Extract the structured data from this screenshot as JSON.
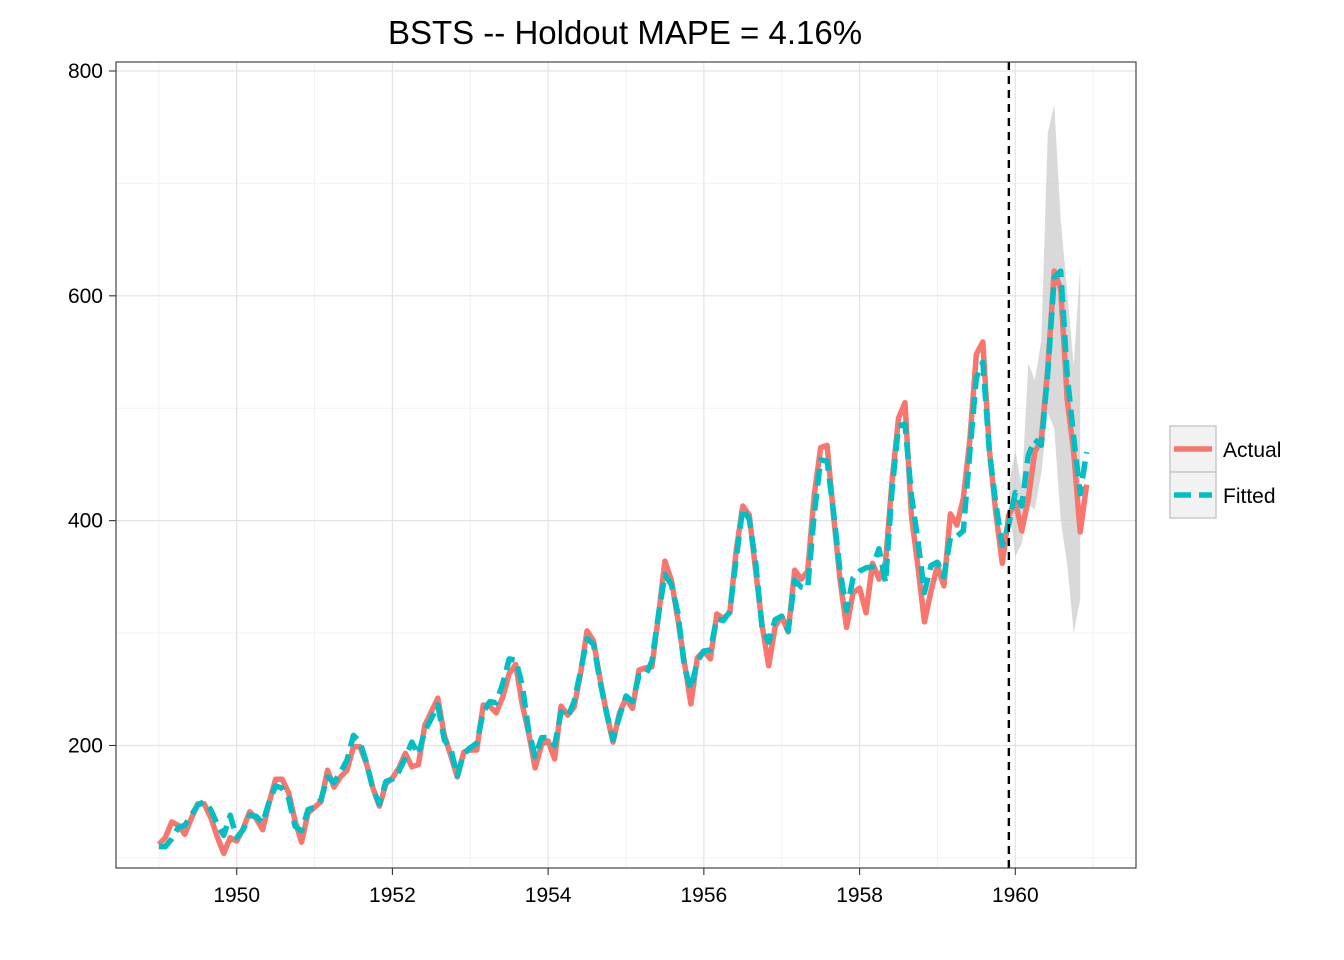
{
  "chart_data": {
    "type": "line",
    "title": "BSTS -- Holdout MAPE = 4.16%",
    "xlabel": "",
    "ylabel": "",
    "xlim": [
      1948.45,
      1961.55
    ],
    "ylim": [
      91,
      808
    ],
    "x_ticks": [
      1950,
      1952,
      1954,
      1956,
      1958,
      1960
    ],
    "x_tick_labels": [
      "1950",
      "1952",
      "1954",
      "1956",
      "1958",
      "1960"
    ],
    "y_ticks": [
      200,
      400,
      600,
      800
    ],
    "y_tick_labels": [
      "200",
      "400",
      "600",
      "800"
    ],
    "grid": true,
    "legend_position": "right",
    "holdout_start": 1959.917,
    "x_start": 1949.0,
    "x_step": 0.08333,
    "series": [
      {
        "name": "Actual",
        "color": "#F8766D",
        "dash": "solid",
        "values": [
          112,
          118,
          132,
          129,
          121,
          135,
          148,
          148,
          136,
          119,
          104,
          118,
          115,
          126,
          141,
          135,
          125,
          149,
          170,
          170,
          158,
          133,
          114,
          140,
          145,
          150,
          178,
          163,
          172,
          178,
          199,
          199,
          184,
          162,
          146,
          166,
          171,
          180,
          193,
          181,
          183,
          218,
          230,
          242,
          209,
          191,
          172,
          194,
          196,
          196,
          236,
          235,
          229,
          243,
          264,
          272,
          237,
          211,
          180,
          201,
          204,
          188,
          235,
          227,
          234,
          264,
          302,
          293,
          259,
          229,
          203,
          229,
          242,
          233,
          267,
          269,
          270,
          315,
          364,
          347,
          312,
          274,
          237,
          278,
          284,
          277,
          317,
          313,
          318,
          374,
          413,
          405,
          355,
          306,
          271,
          306,
          315,
          301,
          356,
          348,
          355,
          422,
          465,
          467,
          404,
          347,
          305,
          336,
          340,
          318,
          362,
          348,
          363,
          435,
          491,
          505,
          404,
          359,
          310,
          337,
          360,
          342,
          406,
          396,
          420,
          472,
          548,
          559,
          463,
          407,
          362,
          405,
          417,
          391,
          419,
          461,
          472,
          535,
          622,
          606,
          508,
          461,
          390,
          432
        ]
      },
      {
        "name": "Fitted",
        "color": "#00BFC4",
        "dash": "dashed",
        "values": [
          110,
          110,
          117,
          127,
          129,
          138,
          147,
          150,
          143,
          130,
          120,
          138,
          118,
          125,
          138,
          137,
          131,
          150,
          164,
          162,
          153,
          128,
          124,
          143,
          145,
          152,
          172,
          167,
          176,
          187,
          209,
          203,
          185,
          161,
          148,
          168,
          170,
          177,
          189,
          203,
          192,
          213,
          224,
          236,
          205,
          197,
          173,
          193,
          198,
          202,
          230,
          239,
          238,
          255,
          277,
          276,
          254,
          213,
          190,
          207,
          207,
          200,
          230,
          225,
          239,
          266,
          295,
          290,
          257,
          229,
          205,
          226,
          244,
          239,
          262,
          262,
          275,
          316,
          352,
          343,
          318,
          270,
          250,
          275,
          284,
          285,
          313,
          311,
          319,
          367,
          411,
          401,
          362,
          303,
          292,
          312,
          315,
          302,
          347,
          341,
          340,
          405,
          454,
          453,
          407,
          355,
          320,
          349,
          355,
          358,
          359,
          375,
          345,
          427,
          484,
          486,
          422,
          382,
          336,
          360,
          363,
          350,
          385,
          386,
          391,
          461,
          527,
          541,
          462,
          415,
          378,
          397,
          425,
          413,
          458,
          472,
          467,
          531,
          616,
          622,
          530,
          474,
          424,
          461
        ]
      }
    ],
    "interval": {
      "x_start": 1959.917,
      "upper": [
        433,
        462,
        430,
        540,
        525,
        560,
        745,
        770,
        667,
        604,
        538,
        628
      ],
      "lower": [
        414,
        368,
        380,
        414,
        410,
        442,
        496,
        482,
        400,
        361,
        300,
        330
      ]
    }
  }
}
